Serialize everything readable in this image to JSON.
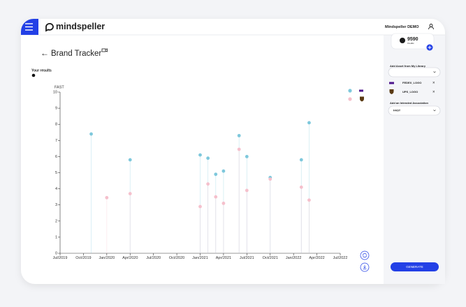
{
  "header": {
    "brand": "mindspeller",
    "user": "Mindspeller DEMO"
  },
  "credits": {
    "value": 9590,
    "label": "Credits"
  },
  "page_title": "Brand Tracker",
  "results_label": "Your results",
  "chart_data": {
    "type": "scatter",
    "y_label": "FAST",
    "xlim": [
      "2019-07",
      "2022-07"
    ],
    "xticks": [
      {
        "value": "2019-07",
        "label": "Jul/2019"
      },
      {
        "value": "2019-10",
        "label": "Oct/2019"
      },
      {
        "value": "2020-01",
        "label": "Jan/2020"
      },
      {
        "value": "2020-04",
        "label": "Apr/2020"
      },
      {
        "value": "2020-07",
        "label": "Jul/2020"
      },
      {
        "value": "2020-10",
        "label": "Oct/2020"
      },
      {
        "value": "2021-01",
        "label": "Jan/2021"
      },
      {
        "value": "2021-04",
        "label": "Apr/2021"
      },
      {
        "value": "2021-07",
        "label": "Jul/2021"
      },
      {
        "value": "2021-10",
        "label": "Oct/2021"
      },
      {
        "value": "2022-01",
        "label": "Jan/2022"
      },
      {
        "value": "2022-04",
        "label": "Apr/2022"
      },
      {
        "value": "2022-07",
        "label": "Jul/2022"
      }
    ],
    "ylim": [
      0,
      10
    ],
    "yticks": [
      0,
      1,
      2,
      3,
      4,
      5,
      6,
      7,
      8,
      9,
      10
    ],
    "grid": false,
    "series": [
      {
        "color": "#7ec8dc",
        "x": [
          "2019-11",
          "2020-04",
          "2021-01",
          "2021-02",
          "2021-03",
          "2021-04",
          "2021-06",
          "2021-07",
          "2021-10",
          "2022-02",
          "2022-03"
        ],
        "values": [
          7.4,
          5.8,
          6.1,
          5.9,
          4.9,
          5.1,
          7.3,
          6.0,
          4.7,
          5.8,
          8.1
        ]
      },
      {
        "color": "#f5c0cc",
        "x": [
          "2020-01",
          "2020-04",
          "2021-01",
          "2021-02",
          "2021-03",
          "2021-04",
          "2021-06",
          "2021-07",
          "2021-10",
          "2022-02",
          "2022-03"
        ],
        "values": [
          3.45,
          3.7,
          2.9,
          4.3,
          3.5,
          3.1,
          6.45,
          3.9,
          4.6,
          4.1,
          3.3
        ]
      }
    ]
  },
  "sidebar": {
    "library_label": "Add Asset from My Library",
    "assets": [
      "FEDEX_LOGO",
      "UPS_LOGO"
    ],
    "association_label": "Add an Intended Association",
    "association": "FAST",
    "button": "GENERATE"
  }
}
